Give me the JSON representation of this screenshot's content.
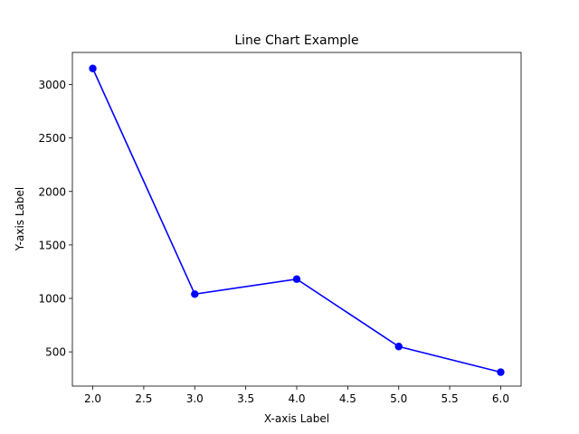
{
  "chart_data": {
    "type": "line",
    "title": "Line Chart Example",
    "xlabel": "X-axis Label",
    "ylabel": "Y-axis Label",
    "grid": false,
    "xlim": [
      1.8,
      6.2
    ],
    "ylim": [
      180,
      3300
    ],
    "xticks": [
      2.0,
      2.5,
      3.0,
      3.5,
      4.0,
      4.5,
      5.0,
      5.5,
      6.0
    ],
    "xtick_labels": [
      "2.0",
      "2.5",
      "3.0",
      "3.5",
      "4.0",
      "4.5",
      "5.0",
      "5.5",
      "6.0"
    ],
    "yticks": [
      500,
      1000,
      1500,
      2000,
      2500,
      3000
    ],
    "ytick_labels": [
      "500",
      "1000",
      "1500",
      "2000",
      "2500",
      "3000"
    ],
    "series": [
      {
        "color": "#0000ff",
        "marker": "circle",
        "x": [
          2,
          3,
          4,
          5,
          6
        ],
        "y": [
          3150,
          1040,
          1180,
          550,
          310
        ]
      }
    ]
  }
}
